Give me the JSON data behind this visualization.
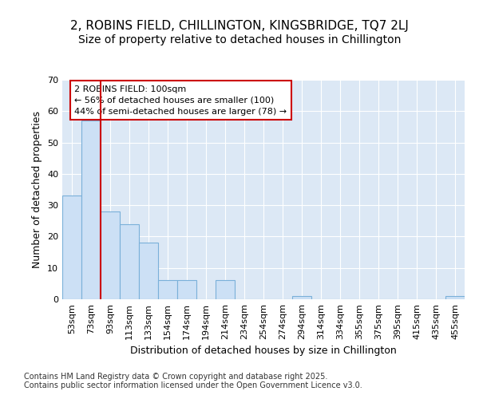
{
  "title": "2, ROBINS FIELD, CHILLINGTON, KINGSBRIDGE, TQ7 2LJ",
  "subtitle": "Size of property relative to detached houses in Chillington",
  "xlabel": "Distribution of detached houses by size in Chillington",
  "ylabel": "Number of detached properties",
  "categories": [
    "53sqm",
    "73sqm",
    "93sqm",
    "113sqm",
    "133sqm",
    "154sqm",
    "174sqm",
    "194sqm",
    "214sqm",
    "234sqm",
    "254sqm",
    "274sqm",
    "294sqm",
    "314sqm",
    "334sqm",
    "355sqm",
    "375sqm",
    "395sqm",
    "415sqm",
    "435sqm",
    "455sqm"
  ],
  "values": [
    33,
    57,
    28,
    24,
    18,
    6,
    6,
    0,
    6,
    0,
    0,
    0,
    1,
    0,
    0,
    0,
    0,
    0,
    0,
    0,
    1
  ],
  "bar_color": "#cce0f5",
  "bar_edge_color": "#7ab0d9",
  "reference_line_x": 1.5,
  "annotation_title": "2 ROBINS FIELD: 100sqm",
  "annotation_line1": "← 56% of detached houses are smaller (100)",
  "annotation_line2": "44% of semi-detached houses are larger (78) →",
  "annotation_box_color": "white",
  "annotation_box_edge_color": "#cc0000",
  "vline_color": "#cc0000",
  "ylim": [
    0,
    70
  ],
  "yticks": [
    0,
    10,
    20,
    30,
    40,
    50,
    60,
    70
  ],
  "background_color": "#ffffff",
  "plot_background_color": "#dce8f5",
  "grid_color": "#ffffff",
  "footer": "Contains HM Land Registry data © Crown copyright and database right 2025.\nContains public sector information licensed under the Open Government Licence v3.0.",
  "title_fontsize": 11,
  "subtitle_fontsize": 10,
  "xlabel_fontsize": 9,
  "ylabel_fontsize": 9,
  "tick_fontsize": 8,
  "annotation_fontsize": 8,
  "footer_fontsize": 7
}
